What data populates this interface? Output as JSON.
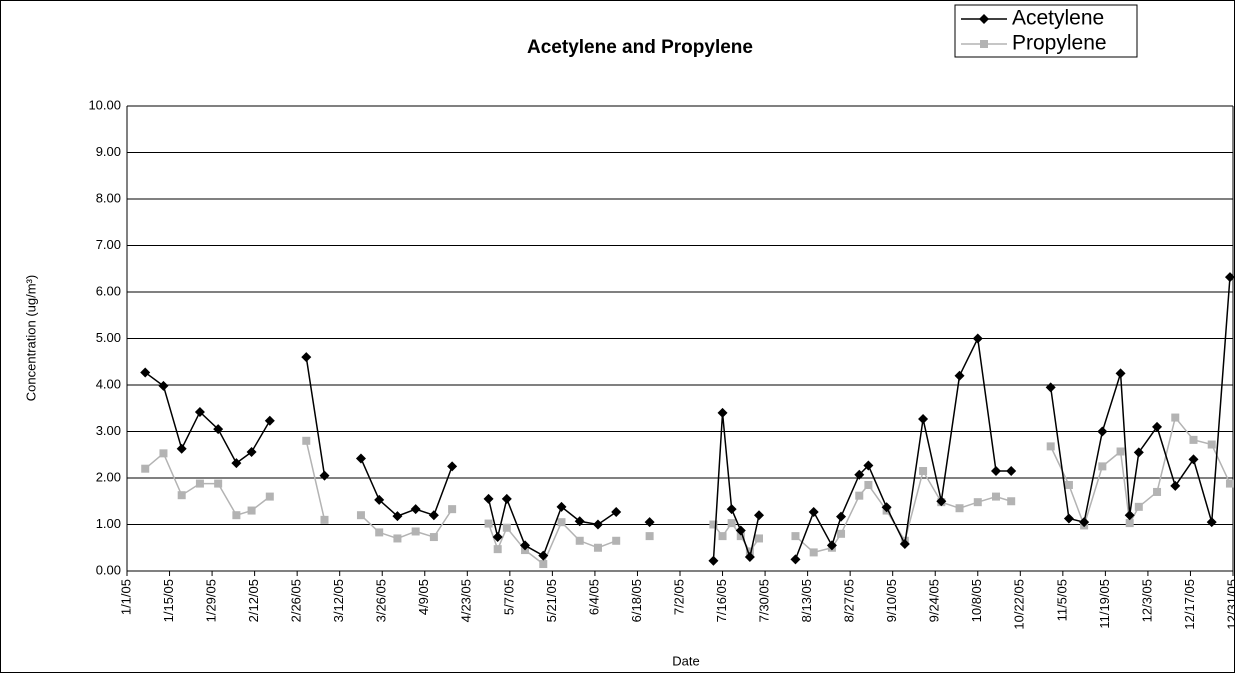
{
  "chart_data": {
    "type": "line",
    "title": "Acetylene and Propylene",
    "x_label": "Date",
    "y_label": "Concentration (ug/m³)",
    "x": [
      "1/7/05",
      "1/13/05",
      "1/19/05",
      "1/25/05",
      "1/31/05",
      "2/6/05",
      "2/11/05",
      "2/17/05",
      "2/23/05",
      "3/1/05",
      "3/7/05",
      "3/13/05",
      "3/19/05",
      "3/25/05",
      "3/31/05",
      "4/6/05",
      "4/12/05",
      "4/18/05",
      "4/24/05",
      "4/30/05",
      "5/3/05",
      "5/6/05",
      "5/12/05",
      "5/18/05",
      "5/24/05",
      "5/30/05",
      "6/5/05",
      "6/11/05",
      "6/16/05",
      "6/22/05",
      "7/4/05",
      "7/13/05",
      "7/16/05",
      "7/19/05",
      "7/22/05",
      "7/25/05",
      "7/28/05",
      "8/2/05",
      "8/9/05",
      "8/15/05",
      "8/21/05",
      "8/24/05",
      "8/30/05",
      "9/2/05",
      "9/8/05",
      "9/14/05",
      "9/20/05",
      "9/26/05",
      "10/2/05",
      "10/8/05",
      "10/14/05",
      "10/19/05",
      "10/25/05",
      "11/1/05",
      "11/7/05",
      "11/12/05",
      "11/18/05",
      "11/24/05",
      "11/27/05",
      "11/30/05",
      "12/6/05",
      "12/12/05",
      "12/18/05",
      "12/24/05",
      "12/30/05"
    ],
    "series": [
      {
        "name": "Acetylene",
        "color": "#000000",
        "marker": "diamond",
        "values": [
          4.27,
          3.98,
          2.63,
          3.42,
          3.05,
          2.32,
          2.56,
          3.23,
          null,
          4.6,
          2.05,
          null,
          2.42,
          1.53,
          1.18,
          1.33,
          1.2,
          2.25,
          null,
          1.55,
          0.73,
          1.55,
          0.55,
          0.33,
          1.38,
          1.07,
          1.0,
          1.27,
          null,
          1.05,
          null,
          0.22,
          3.4,
          1.33,
          0.87,
          0.3,
          1.2,
          null,
          0.25,
          1.27,
          0.55,
          1.17,
          2.07,
          2.27,
          1.37,
          0.58,
          3.27,
          1.5,
          4.2,
          5.0,
          2.15,
          2.15,
          null,
          3.95,
          1.13,
          1.05,
          3.0,
          4.25,
          1.2,
          2.55,
          3.1,
          1.83,
          2.4,
          1.05,
          6.32
        ]
      },
      {
        "name": "Propylene",
        "color": "#b3b3b3",
        "marker": "square",
        "values": [
          2.2,
          2.53,
          1.63,
          1.88,
          1.88,
          1.2,
          1.3,
          1.6,
          null,
          2.8,
          1.1,
          null,
          1.2,
          0.83,
          0.7,
          0.85,
          0.73,
          1.33,
          null,
          1.02,
          0.47,
          0.93,
          0.45,
          0.15,
          1.05,
          0.65,
          0.5,
          0.65,
          null,
          0.75,
          null,
          1.0,
          0.75,
          1.03,
          0.75,
          0.42,
          0.7,
          null,
          0.75,
          0.4,
          0.5,
          0.8,
          1.62,
          1.85,
          1.3,
          0.65,
          2.15,
          1.48,
          1.35,
          1.48,
          1.6,
          1.5,
          null,
          2.68,
          1.85,
          0.98,
          2.25,
          2.57,
          1.03,
          1.38,
          1.7,
          3.3,
          2.82,
          2.72,
          1.88
        ]
      }
    ],
    "xlim": [
      "1/1/05",
      "12/31/05"
    ],
    "xticks": [
      "1/1/05",
      "1/15/05",
      "1/29/05",
      "2/12/05",
      "2/26/05",
      "3/12/05",
      "3/26/05",
      "4/9/05",
      "4/23/05",
      "5/7/05",
      "5/21/05",
      "6/4/05",
      "6/18/05",
      "7/2/05",
      "7/16/05",
      "7/30/05",
      "8/13/05",
      "8/27/05",
      "9/10/05",
      "9/24/05",
      "10/8/05",
      "10/22/05",
      "11/5/05",
      "11/19/05",
      "12/3/05",
      "12/17/05",
      "12/31/05"
    ],
    "ylim": [
      0,
      10
    ],
    "yticks": [
      {
        "value": 0,
        "label": "0.00"
      },
      {
        "value": 1,
        "label": "1.00"
      },
      {
        "value": 2,
        "label": "2.00"
      },
      {
        "value": 3,
        "label": "3.00"
      },
      {
        "value": 4,
        "label": "4.00"
      },
      {
        "value": 5,
        "label": "5.00"
      },
      {
        "value": 6,
        "label": "6.00"
      },
      {
        "value": 7,
        "label": "7.00"
      },
      {
        "value": 8,
        "label": "8.00"
      },
      {
        "value": 9,
        "label": "9.00"
      },
      {
        "value": 10,
        "label": "10.00"
      }
    ],
    "grid": true,
    "legend": "top-right"
  }
}
